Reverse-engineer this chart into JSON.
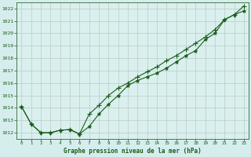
{
  "title": "Graphe pression niveau de la mer (hPa)",
  "bg_color": "#d5eeed",
  "plot_bg_color": "#daf0ee",
  "grid_color": "#b8ccc8",
  "line_color": "#1a5c1a",
  "marker_color": "#1a5c1a",
  "spine_color": "#336633",
  "xlim": [
    -0.5,
    23.5
  ],
  "ylim": [
    1011.5,
    1022.5
  ],
  "yticks": [
    1012,
    1013,
    1014,
    1015,
    1016,
    1017,
    1018,
    1019,
    1020,
    1021,
    1022
  ],
  "xticks": [
    0,
    1,
    2,
    3,
    4,
    5,
    6,
    7,
    8,
    9,
    10,
    11,
    12,
    13,
    14,
    15,
    16,
    17,
    18,
    19,
    20,
    21,
    22,
    23
  ],
  "series1_x": [
    0,
    1,
    2,
    3,
    4,
    5,
    6,
    7,
    8,
    9,
    10,
    11,
    12,
    13,
    14,
    15,
    16,
    17,
    18,
    19,
    20,
    21,
    22,
    23
  ],
  "series1_y": [
    1014.1,
    1012.7,
    1012.0,
    1012.0,
    1012.2,
    1012.25,
    1011.9,
    1012.5,
    1013.5,
    1014.3,
    1015.0,
    1015.8,
    1016.2,
    1016.5,
    1016.8,
    1017.2,
    1017.7,
    1018.2,
    1018.6,
    1019.5,
    1020.0,
    1021.1,
    1021.5,
    1021.8
  ],
  "series2_x": [
    0,
    1,
    2,
    3,
    4,
    5,
    6,
    7,
    8,
    9,
    10,
    11,
    12,
    13,
    14,
    15,
    16,
    17,
    18,
    19,
    20,
    21,
    22,
    23
  ],
  "series2_y": [
    1014.1,
    1012.7,
    1012.0,
    1012.0,
    1012.2,
    1012.25,
    1011.9,
    1013.5,
    1014.2,
    1015.0,
    1015.6,
    1016.0,
    1016.5,
    1016.9,
    1017.3,
    1017.8,
    1018.2,
    1018.7,
    1019.2,
    1019.7,
    1020.3,
    1021.1,
    1021.5,
    1022.2
  ]
}
